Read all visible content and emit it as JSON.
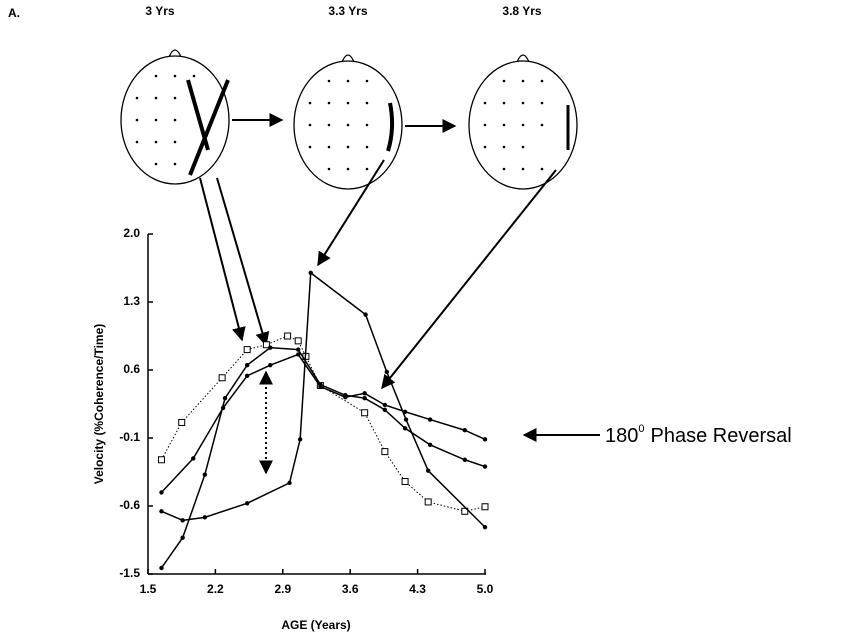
{
  "chart_data": {
    "type": "line",
    "panel_label": "A.",
    "stage_labels": [
      "3 Yrs",
      "3.3 Yrs",
      "3.8 Yrs"
    ],
    "annotation": {
      "number": "180",
      "superscript": "0",
      "text": "Phase Reversal"
    },
    "y_label": "Velocity (%Coherence/Time)",
    "x_label": "AGE (Years)",
    "xlim": [
      1.5,
      5.0
    ],
    "xticks": [
      1.5,
      2.2,
      2.9,
      3.6,
      4.3,
      {
        "value": 5.0,
        "label": "5.0"
      }
    ],
    "ylim": [
      -1.5,
      2.0
    ],
    "yticks": [
      -1.5,
      -0.6,
      -0.1,
      0.6,
      1.3,
      {
        "value": 2.0,
        "label": "2.0"
      }
    ],
    "series": [
      {
        "color": "#000000",
        "marker": "square",
        "dash": "dotted",
        "x": [
          1.64,
          1.85,
          2.27,
          2.53,
          2.73,
          2.95,
          3.06,
          3.14,
          3.29,
          3.75,
          3.96,
          4.17,
          4.41,
          4.79,
          5.0
        ],
        "values": [
          -0.26,
          0.06,
          0.52,
          0.81,
          0.86,
          0.95,
          0.9,
          0.74,
          0.44,
          0.16,
          -0.2,
          -0.42,
          -0.57,
          -0.67,
          -0.61
        ]
      },
      {
        "color": "#000000",
        "marker": "circle",
        "dash": "solid",
        "x": [
          1.64,
          1.97,
          2.28,
          2.53,
          2.77,
          3.06,
          3.29,
          3.55,
          3.75,
          3.96,
          4.17,
          4.43,
          4.79,
          5.0
        ],
        "values": [
          -0.5,
          -0.25,
          0.21,
          0.54,
          0.65,
          0.76,
          0.43,
          0.32,
          0.36,
          0.24,
          0.17,
          0.09,
          -0.02,
          -0.11
        ]
      },
      {
        "color": "#000000",
        "marker": "circle",
        "dash": "solid",
        "x": [
          1.64,
          1.86,
          2.09,
          2.3,
          2.53,
          2.77,
          3.06,
          3.29,
          3.55,
          3.75,
          3.96,
          4.17,
          4.43,
          4.79,
          5.0
        ],
        "values": [
          -1.42,
          -1.02,
          -0.37,
          0.31,
          0.65,
          0.83,
          0.81,
          0.45,
          0.34,
          0.31,
          0.19,
          0.0,
          -0.15,
          -0.26,
          -0.31
        ]
      },
      {
        "color": "#000000",
        "marker": "circle",
        "dash": "solid",
        "x": [
          1.64,
          1.86,
          2.09,
          2.53,
          2.97,
          3.08,
          3.19,
          3.76,
          3.98,
          4.18,
          4.41,
          5.0
        ],
        "values": [
          -0.67,
          -0.79,
          -0.75,
          -0.58,
          -0.43,
          -0.11,
          1.6,
          1.17,
          0.58,
          0.09,
          -0.34,
          -0.88
        ]
      }
    ]
  }
}
